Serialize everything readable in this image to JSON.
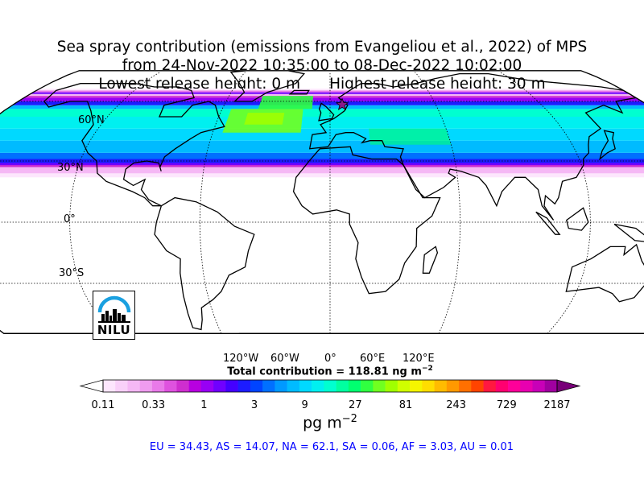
{
  "title": {
    "line1": "Sea spray contribution (emissions from Evangeliou et al., 2022) of MPS",
    "line2": "from 24-Nov-2022 10:35:00 to 08-Dec-2022 10:02:00",
    "line3_left": "Lowest release height: 0 m",
    "line3_right": "Highest release height: 30 m"
  },
  "map": {
    "projection": "robinson",
    "lat_labels": [
      "60°N",
      "30°N",
      "0°",
      "30°S"
    ],
    "lon_labels": [
      "120°W",
      "60°W",
      "0°",
      "60°E",
      "120°E"
    ],
    "station_marker": "star",
    "station_color": "#8b1a8b"
  },
  "total_label": "Total contribution = 118.81 ng m",
  "total_exp": "−2",
  "colorbar": {
    "ticks": [
      "0.11",
      "0.33",
      "1",
      "3",
      "9",
      "27",
      "81",
      "243",
      "729",
      "2187"
    ],
    "unit": "pg m",
    "unit_exp": "−2",
    "colors": [
      "#ffffff",
      "#fde6fd",
      "#f9d0f9",
      "#f5b8f5",
      "#ef9cef",
      "#e97ae9",
      "#df52df",
      "#cf2ecf",
      "#b800e0",
      "#9800f5",
      "#7000ff",
      "#4400ff",
      "#1c1cff",
      "#0044ff",
      "#0070ff",
      "#0099ff",
      "#00bbff",
      "#00d9ff",
      "#00f0f0",
      "#00ffd0",
      "#00ffa0",
      "#00ff70",
      "#30ff40",
      "#70ff20",
      "#a0ff00",
      "#d0ff00",
      "#f5f500",
      "#ffdd00",
      "#ffbb00",
      "#ff9900",
      "#ff7000",
      "#ff4400",
      "#ff1840",
      "#ff0070",
      "#ff0099",
      "#e800b0",
      "#c800b8",
      "#a000a0",
      "#780078"
    ]
  },
  "logo": {
    "text": "NILU"
  },
  "regions": "EU = 34.43,  AS = 14.07,  NA = 62.1,  SA = 0.06,  AF = 3.03,  AU = 0.01"
}
